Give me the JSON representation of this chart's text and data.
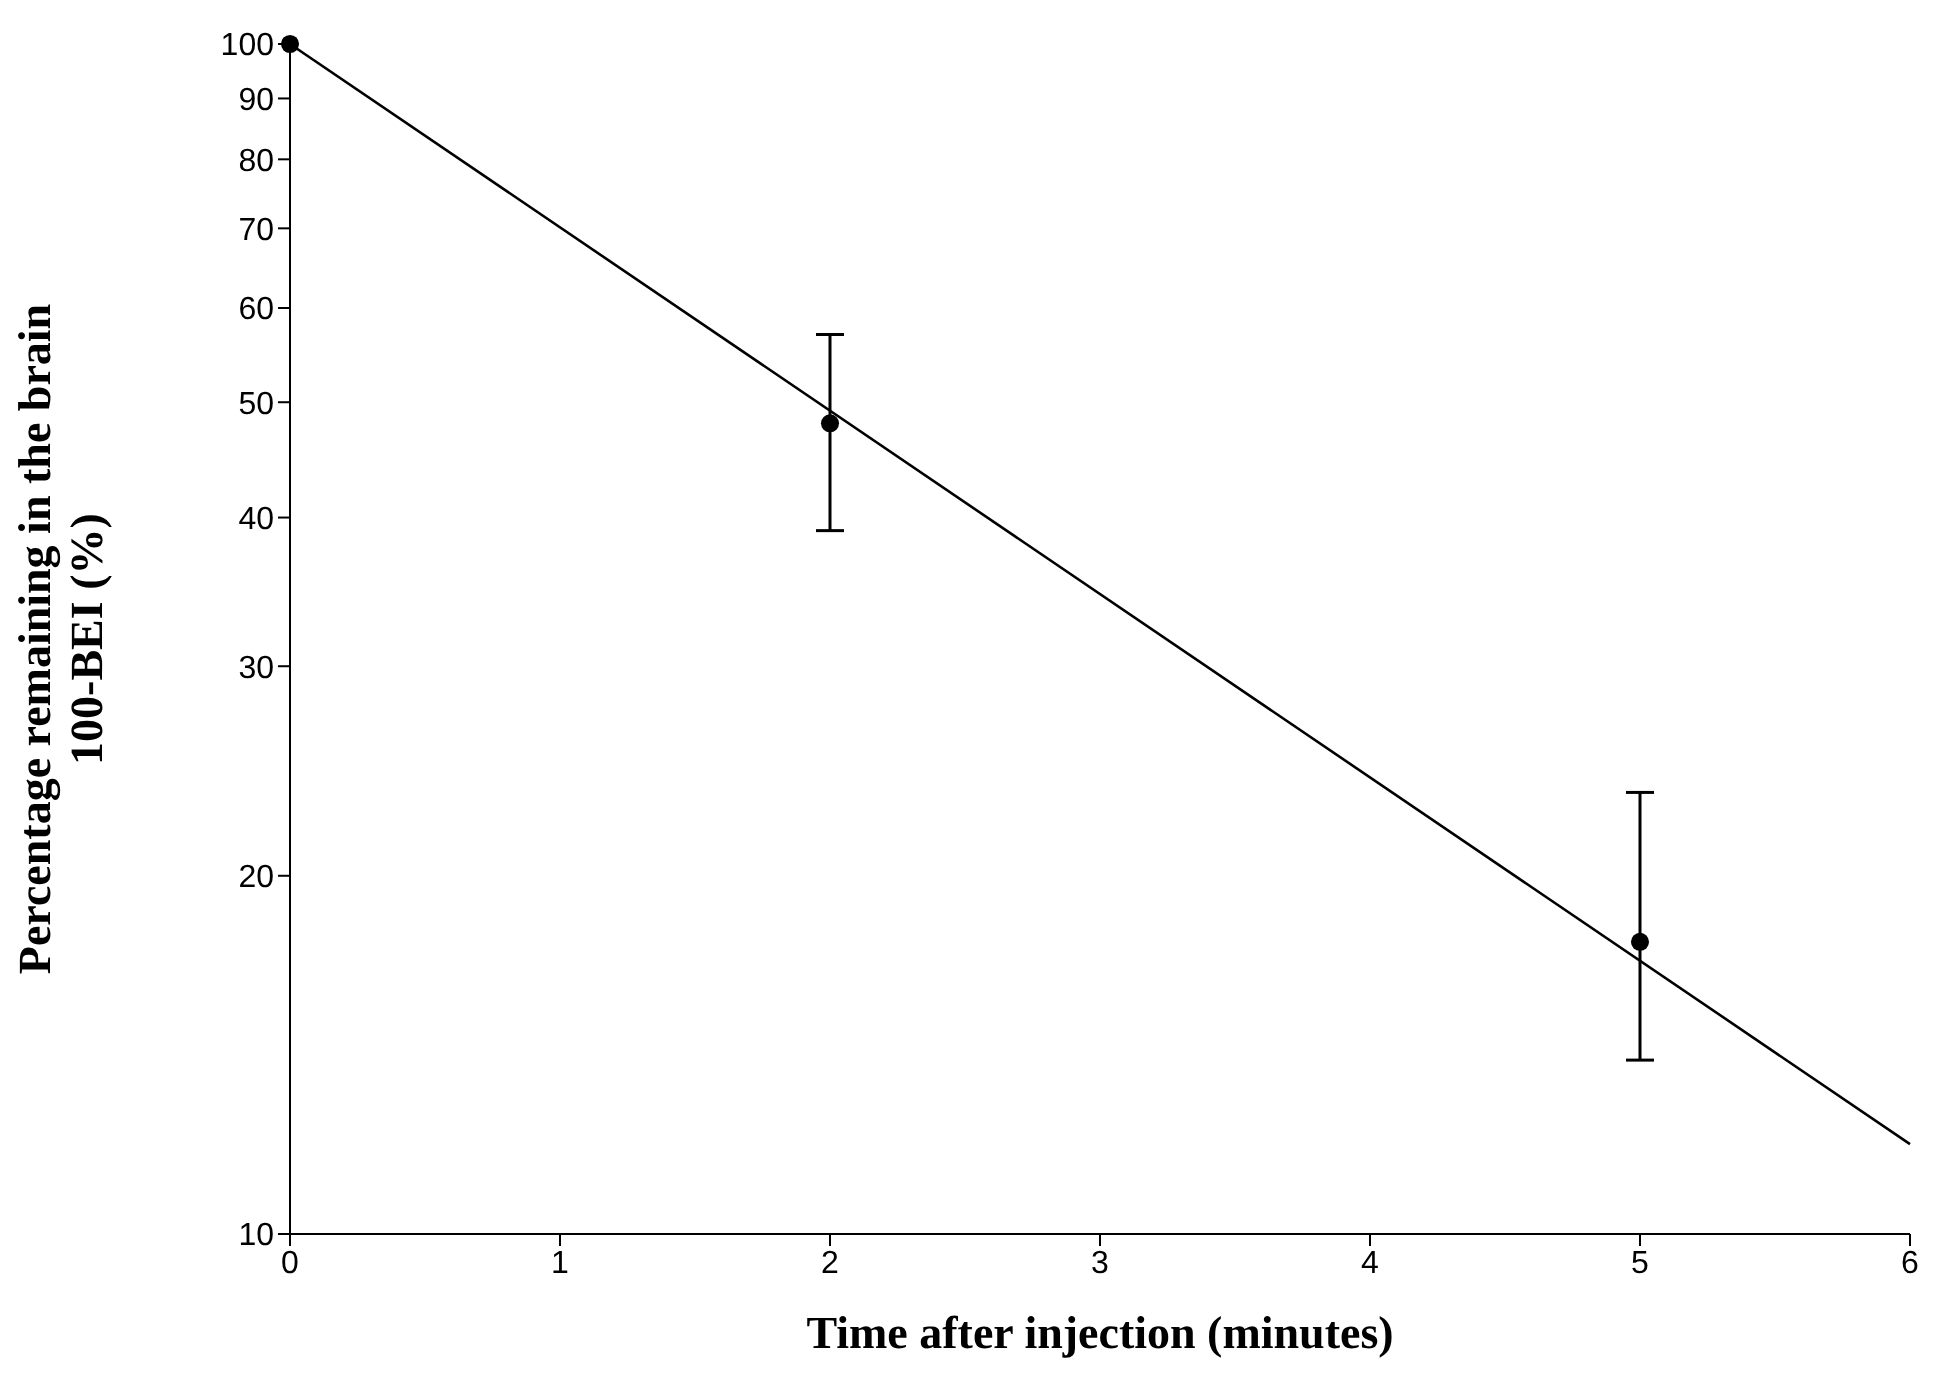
{
  "chart_data": {
    "type": "scatter",
    "xlabel": "Time after injection (minutes)",
    "ylabel": "Percentage remaining in the brain\n100-BEI (%)",
    "log": "y",
    "xlim": [
      0,
      6
    ],
    "xticks": [
      0,
      1,
      2,
      3,
      4,
      5,
      6
    ],
    "ylim": [
      10,
      100
    ],
    "yticks": [
      10,
      20,
      30,
      40,
      50,
      60,
      70,
      80,
      90,
      100
    ],
    "series": [
      {
        "color": "#000000",
        "marker": "circle",
        "x": [
          0,
          2,
          5
        ],
        "values": [
          100,
          48,
          17.6
        ],
        "errors": [
          null,
          [
            39,
            57
          ],
          [
            14,
            23.5
          ]
        ]
      },
      {
        "type": "line",
        "color": "#000000",
        "marker": "none",
        "line_style": "solid",
        "x": [
          0,
          6
        ],
        "values": [
          100,
          11.9
        ]
      }
    ]
  }
}
